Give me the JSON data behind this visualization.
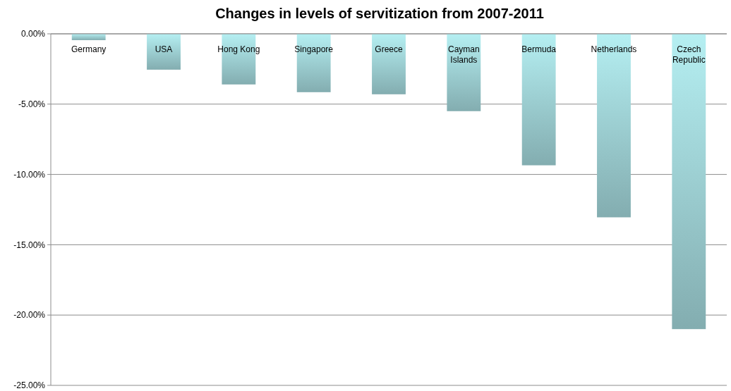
{
  "chart_data": {
    "type": "bar",
    "title": "Changes in levels of servitization from 2007-2011",
    "categories": [
      "Germany",
      "USA",
      "Hong Kong",
      "Singapore",
      "Greece",
      "Cayman Islands",
      "Bermuda",
      "Netherlands",
      "Czech Republic"
    ],
    "values": [
      -0.45,
      -2.55,
      -3.6,
      -4.15,
      -4.3,
      -5.5,
      -9.35,
      -13.05,
      -21.0
    ],
    "color": "#9dcfd2",
    "ylim": [
      -25,
      0
    ],
    "yticks": [
      {
        "value": 0,
        "label": "0.00%"
      },
      {
        "value": -5,
        "label": "-5.00%"
      },
      {
        "value": -10,
        "label": "-10.00%"
      },
      {
        "value": -15,
        "label": "-15.00%"
      },
      {
        "value": -20,
        "label": "-20.00%"
      },
      {
        "value": -25,
        "label": "-25.00%"
      }
    ],
    "grid": "y"
  }
}
